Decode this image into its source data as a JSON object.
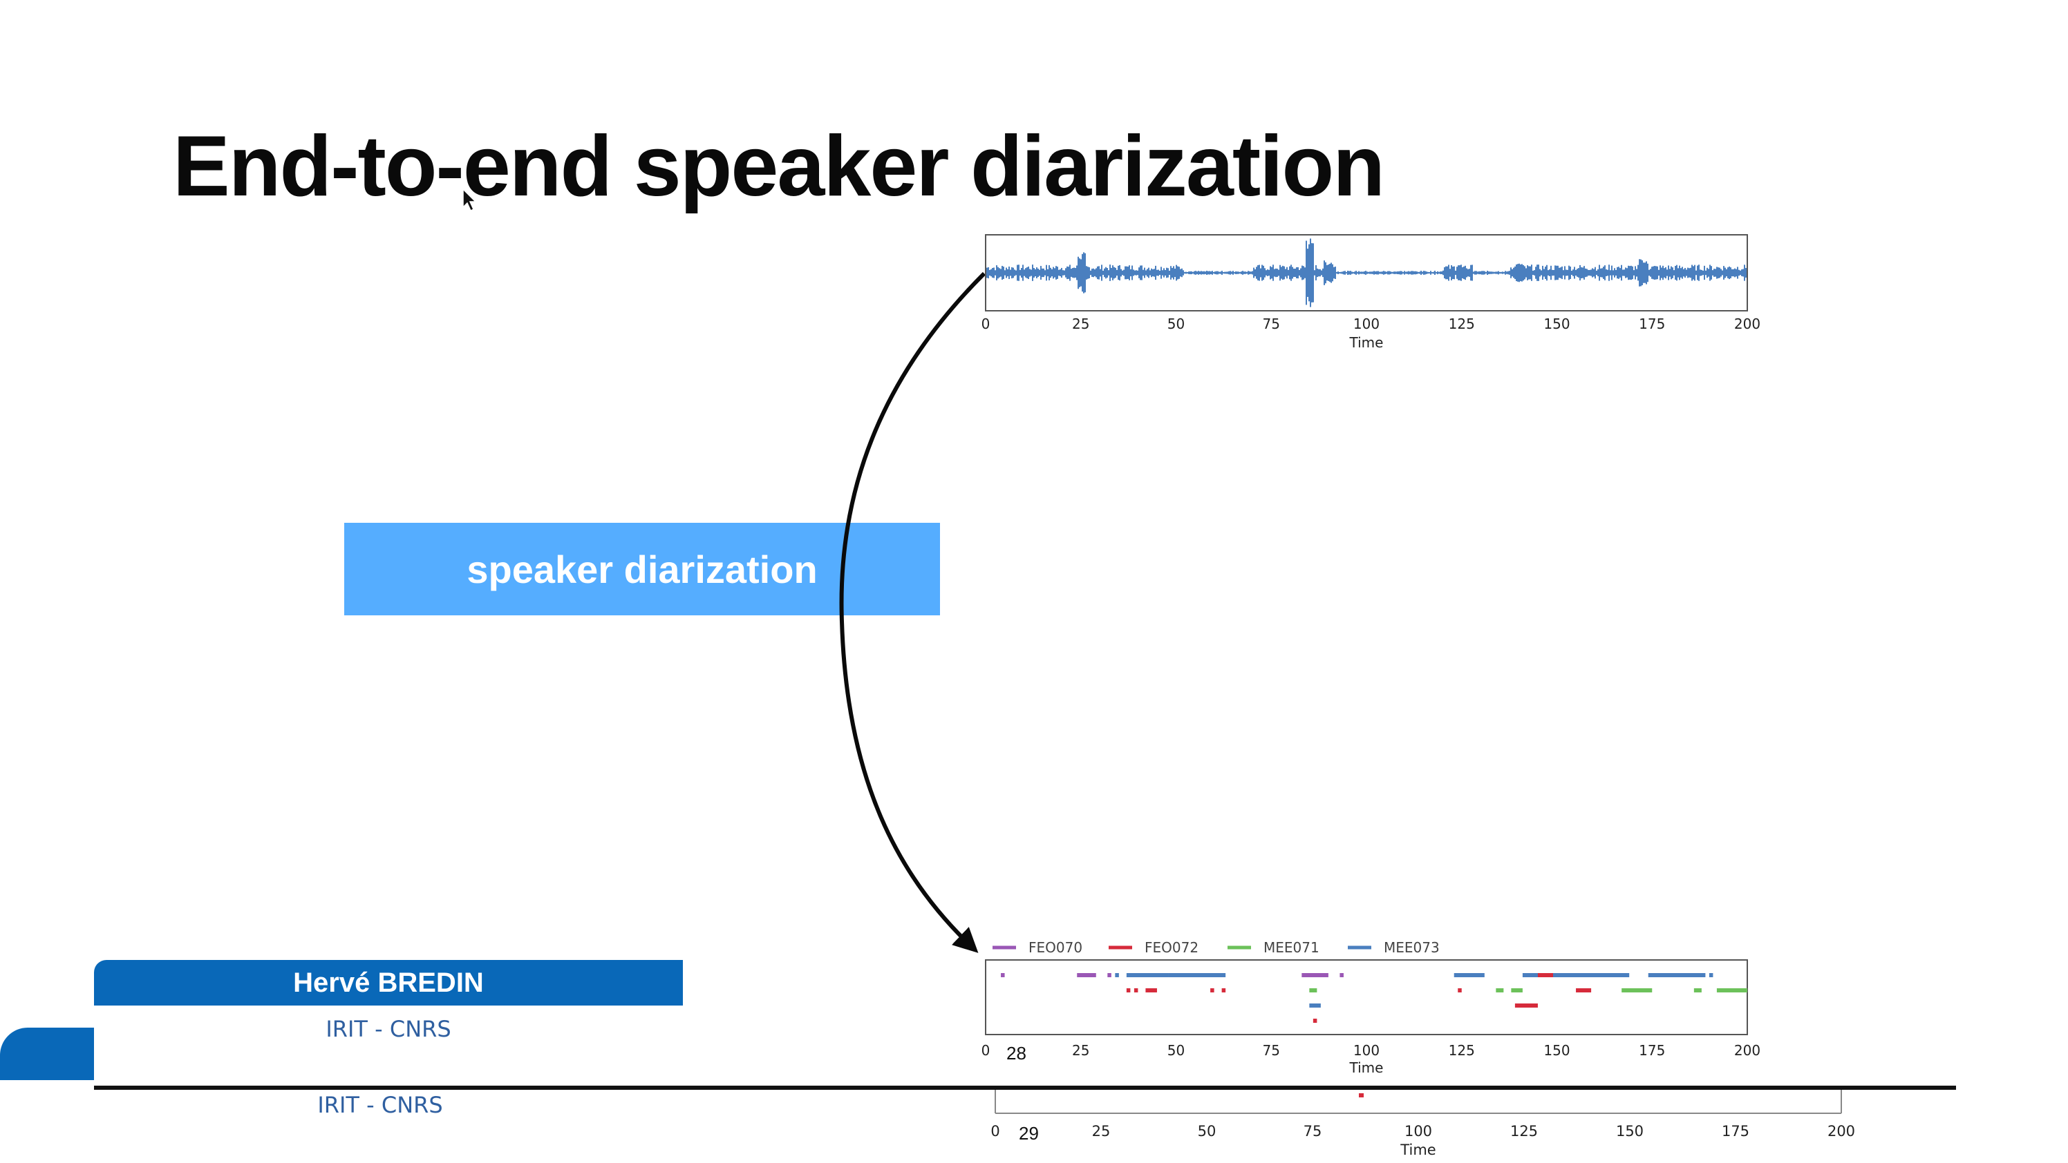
{
  "slide": {
    "title": "End-to-end speaker diarization",
    "process_label": "speaker diarization"
  },
  "waveform_panel": {
    "x_ticks": [
      "0",
      "25",
      "50",
      "75",
      "100",
      "125",
      "150",
      "175",
      "200"
    ],
    "x_label": "Time",
    "line_color": "#4a7fbf"
  },
  "diarization_panel": {
    "legend": [
      {
        "name": "FEO070",
        "color": "#9a57b5"
      },
      {
        "name": "FEO072",
        "color": "#d62b3b"
      },
      {
        "name": "MEE071",
        "color": "#6cc15a"
      },
      {
        "name": "MEE073",
        "color": "#4a7fbf"
      }
    ],
    "x_ticks": [
      "0",
      "25",
      "50",
      "75",
      "100",
      "125",
      "150",
      "175",
      "200"
    ],
    "x_label": "Time",
    "page_number": "28"
  },
  "ghost_panel": {
    "x_ticks": [
      "0",
      "25",
      "50",
      "75",
      "100",
      "125",
      "150",
      "175",
      "200"
    ],
    "x_label": "Time",
    "page_number": "29"
  },
  "chart_data": {
    "type": "timeline",
    "xlabel": "Time",
    "xlim": [
      0,
      200
    ],
    "series": [
      {
        "name": "FEO070",
        "segments": [
          [
            4,
            5
          ],
          [
            24,
            29
          ],
          [
            32,
            33
          ],
          [
            83,
            90
          ],
          [
            93,
            94
          ]
        ]
      },
      {
        "name": "FEO072",
        "segments": [
          [
            37,
            38
          ],
          [
            39,
            40
          ],
          [
            42,
            45
          ],
          [
            59,
            60
          ],
          [
            62,
            63
          ],
          [
            124,
            125
          ],
          [
            139,
            145
          ],
          [
            144,
            151
          ],
          [
            155,
            159
          ],
          [
            86,
            87
          ]
        ]
      },
      {
        "name": "MEE071",
        "segments": [
          [
            85,
            87
          ],
          [
            134,
            136
          ],
          [
            138,
            141
          ],
          [
            167,
            175
          ],
          [
            186,
            188
          ],
          [
            192,
            201
          ]
        ]
      },
      {
        "name": "MEE073",
        "segments": [
          [
            34,
            35
          ],
          [
            37,
            48
          ],
          [
            48,
            63
          ],
          [
            85,
            88
          ],
          [
            123,
            131
          ],
          [
            141,
            145
          ],
          [
            149,
            152
          ],
          [
            151,
            169
          ],
          [
            174,
            189
          ],
          [
            190,
            191
          ]
        ]
      }
    ]
  },
  "presenter": {
    "name": "Hervé BREDIN",
    "affiliation": "IRIT - CNRS",
    "affiliation_ghost": "IRIT - CNRS"
  }
}
